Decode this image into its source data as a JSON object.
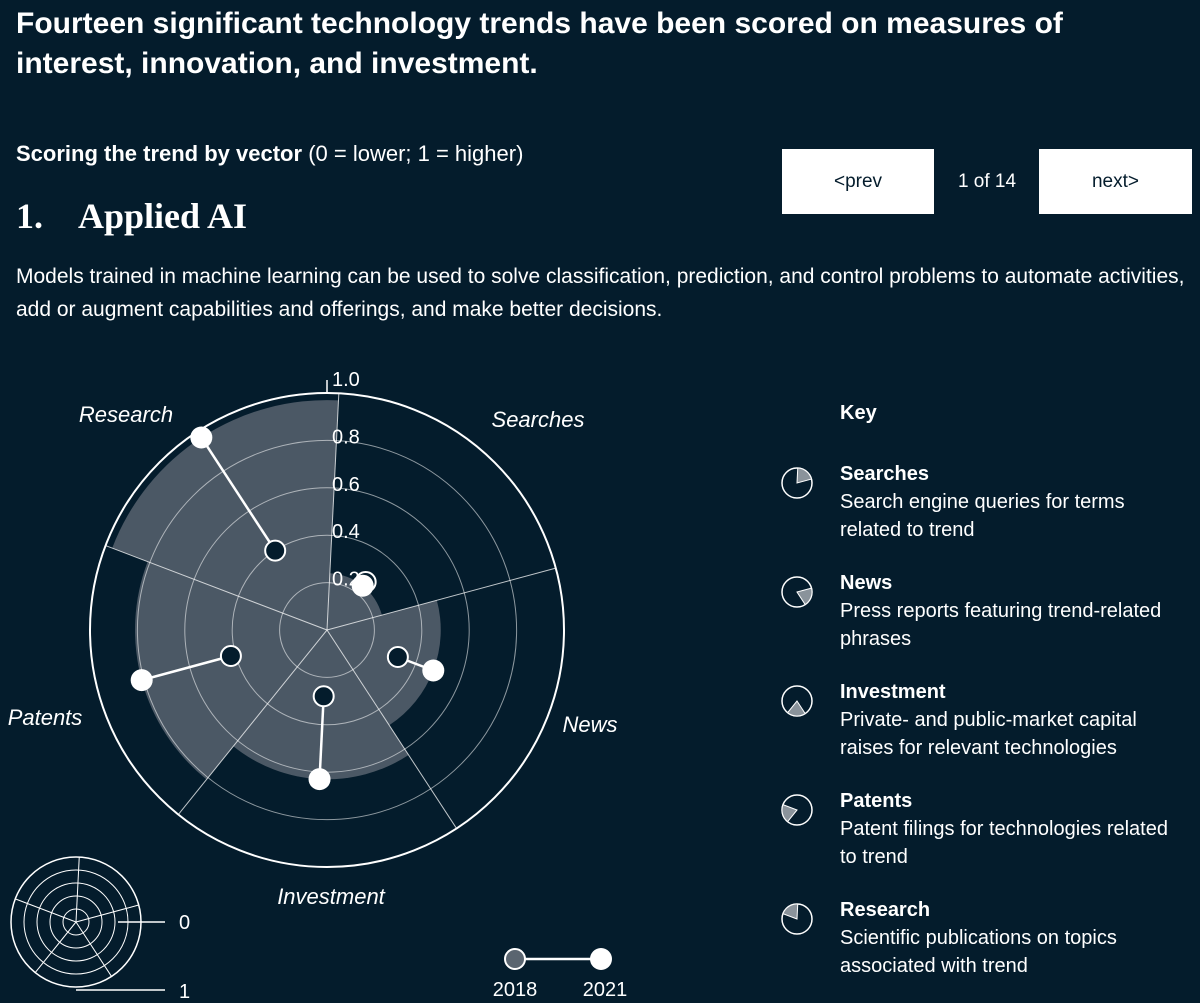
{
  "headline": "Fourteen significant technology trends have been scored on measures of interest, innovation, and investment.",
  "scoring": {
    "label": "Scoring the trend by vector",
    "range": "(0 = lower; 1 = higher)"
  },
  "nav": {
    "prev_label": "<prev",
    "next_label": "next>",
    "page": "1 of 14"
  },
  "trend": {
    "number": "1.",
    "name": "Applied AI",
    "description": "Models trained in machine learning can be used to solve classification, prediction, and control problems to automate activities, add or augment capabilities and offerings, and make better decisions."
  },
  "key": {
    "title": "Key",
    "items": [
      {
        "name": "Searches",
        "desc": "Search engine queries for terms related to trend"
      },
      {
        "name": "News",
        "desc": "Press reports featuring trend-related phrases"
      },
      {
        "name": "Investment",
        "desc": "Private- and public-market capital raises for relevant technologies"
      },
      {
        "name": "Patents",
        "desc": "Patent filings for technologies related to trend"
      },
      {
        "name": "Research",
        "desc": "Scientific publications on topics associated with trend"
      }
    ]
  },
  "chart_data": {
    "type": "radar",
    "axis_ticks": [
      "1.0",
      "0.8",
      "0.6",
      "0.4",
      "0.2"
    ],
    "rlim": [
      0,
      1
    ],
    "categories": [
      "Searches",
      "News",
      "Investment",
      "Patents",
      "Research"
    ],
    "series": [
      {
        "name": "2018",
        "values": [
          0.26,
          0.32,
          0.28,
          0.42,
          0.4
        ]
      },
      {
        "name": "2021",
        "values": [
          0.24,
          0.48,
          0.63,
          0.81,
          0.97
        ]
      }
    ],
    "mini_scale": {
      "min_label": "0",
      "max_label": "1"
    },
    "colors": {
      "background": "#041c2c",
      "area": "#4b5865",
      "line": "#ffffff",
      "dot_2018": "#5a6570"
    }
  }
}
